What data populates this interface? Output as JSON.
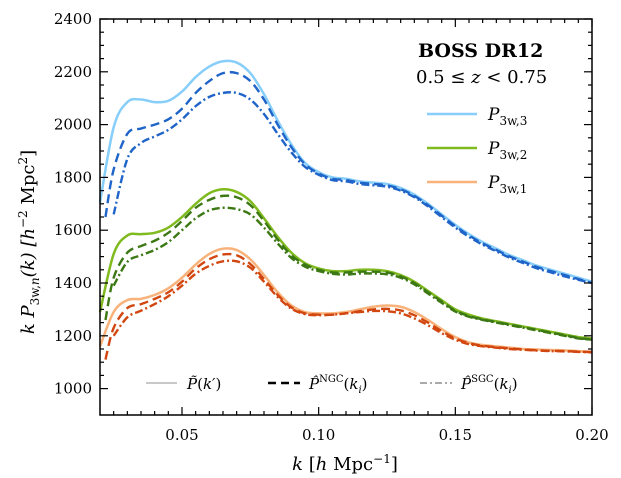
{
  "chart_data": {
    "type": "line",
    "title": "BOSS DR12",
    "subtitle": "0.5 ≤ z < 0.75",
    "xlabel": "k [h Mpc⁻¹]",
    "ylabel": "k P₃w,ₙ(k) [h⁻² Mpc²]",
    "xlim": [
      0.02,
      0.2
    ],
    "ylim": [
      900,
      2400
    ],
    "xticks": [
      0.05,
      0.1,
      0.15,
      0.2
    ],
    "xtick_labels": [
      "0.05",
      "0.10",
      "0.15",
      "0.20"
    ],
    "yticks": [
      1000,
      1200,
      1400,
      1600,
      1800,
      2000,
      2200,
      2400
    ],
    "ytick_labels": [
      "1000",
      "1200",
      "1400",
      "1600",
      "1800",
      "2000",
      "2200",
      "2400"
    ],
    "grid": false,
    "legend_position": "top-right",
    "series": [
      {
        "name": "P3w,3",
        "style": "solid",
        "color": "#87cefa",
        "x": [
          0.02,
          0.025,
          0.03,
          0.035,
          0.04,
          0.045,
          0.05,
          0.055,
          0.06,
          0.065,
          0.07,
          0.075,
          0.08,
          0.085,
          0.09,
          0.095,
          0.1,
          0.105,
          0.11,
          0.115,
          0.12,
          0.125,
          0.13,
          0.135,
          0.14,
          0.145,
          0.15,
          0.155,
          0.16,
          0.165,
          0.17,
          0.175,
          0.18,
          0.185,
          0.19,
          0.195,
          0.2
        ],
        "y": [
          1705,
          1990,
          2085,
          2095,
          2085,
          2090,
          2125,
          2180,
          2220,
          2240,
          2235,
          2195,
          2115,
          2015,
          1925,
          1855,
          1820,
          1800,
          1795,
          1785,
          1780,
          1775,
          1760,
          1735,
          1700,
          1660,
          1620,
          1585,
          1555,
          1530,
          1505,
          1485,
          1465,
          1450,
          1435,
          1420,
          1405
        ]
      },
      {
        "name": "P3w,3 NGC",
        "style": "dashed",
        "color": "#1f64c8",
        "x": [
          0.022,
          0.025,
          0.03,
          0.035,
          0.04,
          0.045,
          0.05,
          0.055,
          0.06,
          0.065,
          0.07,
          0.075,
          0.08,
          0.085,
          0.09,
          0.095,
          0.1,
          0.105,
          0.11,
          0.115,
          0.12,
          0.125,
          0.13,
          0.135,
          0.14,
          0.145,
          0.15,
          0.155,
          0.16,
          0.165,
          0.17,
          0.175,
          0.18,
          0.185,
          0.19,
          0.195,
          0.2
        ],
        "y": [
          1650,
          1830,
          1965,
          1985,
          2000,
          2020,
          2060,
          2120,
          2165,
          2195,
          2195,
          2165,
          2095,
          2000,
          1915,
          1850,
          1815,
          1795,
          1790,
          1780,
          1775,
          1770,
          1755,
          1730,
          1695,
          1655,
          1615,
          1580,
          1550,
          1525,
          1500,
          1480,
          1460,
          1445,
          1430,
          1415,
          1400
        ]
      },
      {
        "name": "P3w,3 SGC",
        "style": "dashdot",
        "color": "#1f64c8",
        "x": [
          0.025,
          0.03,
          0.035,
          0.04,
          0.045,
          0.05,
          0.055,
          0.06,
          0.065,
          0.07,
          0.075,
          0.08,
          0.085,
          0.09,
          0.095,
          0.1,
          0.105,
          0.11,
          0.115,
          0.12,
          0.125,
          0.13,
          0.135,
          0.14,
          0.145,
          0.15,
          0.155,
          0.16,
          0.165,
          0.17,
          0.175,
          0.18,
          0.185,
          0.19,
          0.195,
          0.2
        ],
        "y": [
          1660,
          1870,
          1930,
          1955,
          1980,
          2020,
          2070,
          2105,
          2120,
          2120,
          2095,
          2040,
          1965,
          1895,
          1840,
          1810,
          1790,
          1785,
          1775,
          1770,
          1765,
          1750,
          1725,
          1690,
          1650,
          1610,
          1575,
          1545,
          1520,
          1495,
          1475,
          1455,
          1440,
          1425,
          1412,
          1400
        ]
      },
      {
        "name": "P3w,2",
        "style": "solid",
        "color": "#7fba1e",
        "x": [
          0.02,
          0.025,
          0.03,
          0.035,
          0.04,
          0.045,
          0.05,
          0.055,
          0.06,
          0.065,
          0.07,
          0.075,
          0.08,
          0.085,
          0.09,
          0.095,
          0.1,
          0.105,
          0.11,
          0.115,
          0.12,
          0.125,
          0.13,
          0.135,
          0.14,
          0.145,
          0.15,
          0.155,
          0.16,
          0.165,
          0.17,
          0.175,
          0.18,
          0.185,
          0.19,
          0.195,
          0.2
        ],
        "y": [
          1290,
          1510,
          1580,
          1585,
          1590,
          1610,
          1650,
          1700,
          1740,
          1755,
          1745,
          1710,
          1645,
          1575,
          1515,
          1475,
          1455,
          1445,
          1445,
          1450,
          1450,
          1445,
          1430,
          1405,
          1370,
          1335,
          1300,
          1280,
          1265,
          1255,
          1245,
          1235,
          1225,
          1215,
          1205,
          1195,
          1190
        ]
      },
      {
        "name": "P3w,2 NGC",
        "style": "dashed",
        "color": "#3c7814",
        "x": [
          0.022,
          0.025,
          0.03,
          0.035,
          0.04,
          0.045,
          0.05,
          0.055,
          0.06,
          0.065,
          0.07,
          0.075,
          0.08,
          0.085,
          0.09,
          0.095,
          0.1,
          0.105,
          0.11,
          0.115,
          0.12,
          0.125,
          0.13,
          0.135,
          0.14,
          0.145,
          0.15,
          0.155,
          0.16,
          0.165,
          0.17,
          0.175,
          0.18,
          0.185,
          0.19,
          0.195,
          0.2
        ],
        "y": [
          1260,
          1420,
          1515,
          1540,
          1560,
          1590,
          1635,
          1685,
          1715,
          1730,
          1725,
          1695,
          1635,
          1565,
          1505,
          1470,
          1450,
          1440,
          1440,
          1443,
          1443,
          1440,
          1425,
          1400,
          1365,
          1330,
          1295,
          1275,
          1262,
          1252,
          1242,
          1232,
          1222,
          1212,
          1202,
          1192,
          1185
        ]
      },
      {
        "name": "P3w,2 SGC",
        "style": "dashdot",
        "color": "#3c7814",
        "x": [
          0.025,
          0.03,
          0.035,
          0.04,
          0.045,
          0.05,
          0.055,
          0.06,
          0.065,
          0.07,
          0.075,
          0.08,
          0.085,
          0.09,
          0.095,
          0.1,
          0.105,
          0.11,
          0.115,
          0.12,
          0.125,
          0.13,
          0.135,
          0.14,
          0.145,
          0.15,
          0.155,
          0.16,
          0.165,
          0.17,
          0.175,
          0.18,
          0.185,
          0.19,
          0.195,
          0.2
        ],
        "y": [
          1390,
          1480,
          1505,
          1525,
          1555,
          1600,
          1645,
          1675,
          1685,
          1680,
          1660,
          1610,
          1550,
          1495,
          1462,
          1445,
          1435,
          1432,
          1436,
          1436,
          1433,
          1420,
          1395,
          1360,
          1325,
          1292,
          1272,
          1260,
          1250,
          1240,
          1230,
          1220,
          1210,
          1200,
          1190,
          1185
        ]
      },
      {
        "name": "P3w,1",
        "style": "solid",
        "color": "#f8b27a",
        "x": [
          0.02,
          0.025,
          0.03,
          0.035,
          0.04,
          0.045,
          0.05,
          0.055,
          0.06,
          0.065,
          0.07,
          0.075,
          0.08,
          0.085,
          0.09,
          0.095,
          0.1,
          0.105,
          0.11,
          0.115,
          0.12,
          0.125,
          0.13,
          0.135,
          0.14,
          0.145,
          0.15,
          0.155,
          0.16,
          0.165,
          0.17,
          0.175,
          0.18,
          0.185,
          0.19,
          0.195,
          0.2
        ],
        "y": [
          1160,
          1290,
          1335,
          1340,
          1355,
          1380,
          1420,
          1470,
          1510,
          1530,
          1525,
          1490,
          1430,
          1365,
          1315,
          1290,
          1285,
          1285,
          1290,
          1300,
          1310,
          1315,
          1310,
          1290,
          1260,
          1225,
          1195,
          1175,
          1165,
          1160,
          1155,
          1150,
          1148,
          1146,
          1145,
          1142,
          1140
        ]
      },
      {
        "name": "P3w,1 NGC",
        "style": "dashed",
        "color": "#d2460f",
        "x": [
          0.022,
          0.025,
          0.03,
          0.035,
          0.04,
          0.045,
          0.05,
          0.055,
          0.06,
          0.065,
          0.07,
          0.075,
          0.08,
          0.085,
          0.09,
          0.095,
          0.1,
          0.105,
          0.11,
          0.115,
          0.12,
          0.125,
          0.13,
          0.135,
          0.14,
          0.145,
          0.15,
          0.155,
          0.16,
          0.165,
          0.17,
          0.175,
          0.18,
          0.185,
          0.19,
          0.195,
          0.2
        ],
        "y": [
          1110,
          1230,
          1305,
          1320,
          1340,
          1365,
          1405,
          1455,
          1490,
          1508,
          1505,
          1472,
          1415,
          1355,
          1308,
          1285,
          1280,
          1280,
          1285,
          1293,
          1300,
          1302,
          1296,
          1278,
          1250,
          1218,
          1190,
          1172,
          1162,
          1157,
          1152,
          1148,
          1145,
          1143,
          1142,
          1140,
          1138
        ]
      },
      {
        "name": "P3w,1 SGC",
        "style": "dashdot",
        "color": "#d2460f",
        "x": [
          0.025,
          0.03,
          0.035,
          0.04,
          0.045,
          0.05,
          0.055,
          0.06,
          0.065,
          0.07,
          0.075,
          0.08,
          0.085,
          0.09,
          0.095,
          0.1,
          0.105,
          0.11,
          0.115,
          0.12,
          0.125,
          0.13,
          0.135,
          0.14,
          0.145,
          0.15,
          0.155,
          0.16,
          0.165,
          0.17,
          0.175,
          0.18,
          0.185,
          0.19,
          0.195,
          0.2
        ],
        "y": [
          1200,
          1270,
          1295,
          1320,
          1350,
          1390,
          1435,
          1465,
          1482,
          1482,
          1458,
          1405,
          1347,
          1303,
          1282,
          1278,
          1280,
          1285,
          1290,
          1294,
          1293,
          1285,
          1266,
          1240,
          1210,
          1185,
          1168,
          1160,
          1155,
          1150,
          1147,
          1144,
          1142,
          1141,
          1139,
          1137
        ]
      }
    ],
    "legend_series": [
      {
        "name": "P3w,3",
        "color": "#87cefa"
      },
      {
        "name": "P3w,2",
        "color": "#7fba1e"
      },
      {
        "name": "P3w,1",
        "color": "#f8b27a"
      }
    ],
    "legend_styles": [
      {
        "label": "P̃(k′)",
        "style": "solid",
        "color": "#c8c8c8"
      },
      {
        "label": "P̂NGC(ki)",
        "style": "dashed",
        "color": "#000000"
      },
      {
        "label": "P̂SGC(ki)",
        "style": "dashdot",
        "color": "#aaaaaa"
      }
    ]
  }
}
